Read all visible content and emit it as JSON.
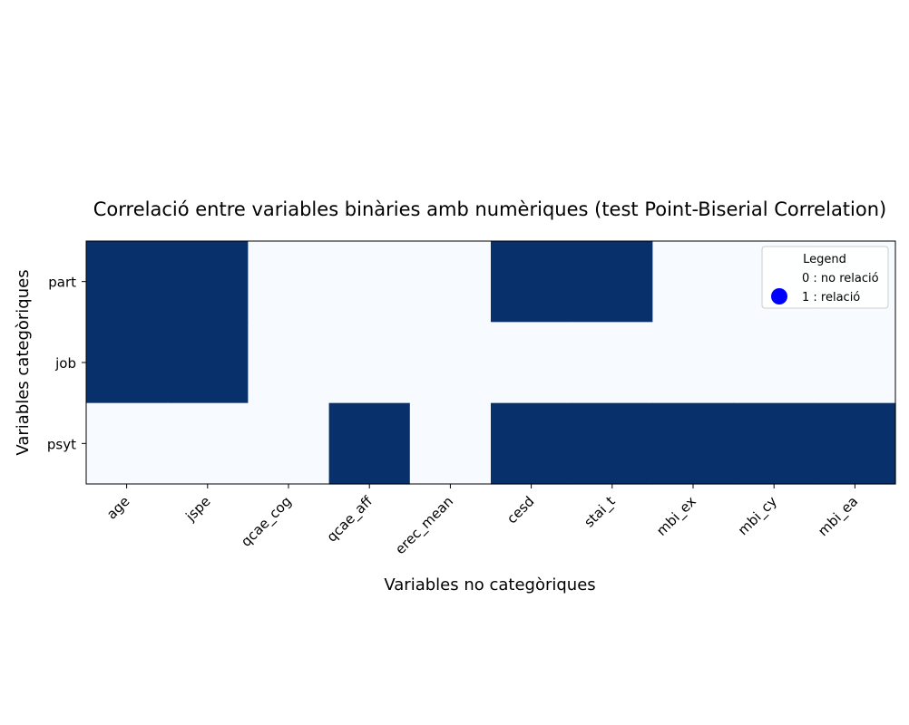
{
  "chart_data": {
    "type": "heatmap",
    "title": "Correlació entre variables binàries amb numèriques (test Point-Biserial Correlation)",
    "xlabel": "Variables no categòriques",
    "ylabel": "Variables categòriques",
    "x_categories": [
      "age",
      "jspe",
      "qcae_cog",
      "qcae_aff",
      "erec_mean",
      "cesd",
      "stai_t",
      "mbi_ex",
      "mbi_cy",
      "mbi_ea"
    ],
    "y_categories": [
      "part",
      "job",
      "psyt"
    ],
    "values": [
      [
        1,
        1,
        0,
        0,
        0,
        1,
        1,
        0,
        0,
        0
      ],
      [
        1,
        1,
        0,
        0,
        0,
        0,
        0,
        0,
        0,
        0
      ],
      [
        0,
        0,
        0,
        1,
        0,
        1,
        1,
        1,
        1,
        1
      ]
    ],
    "colors": {
      "0": "#f7fbff",
      "1": "#08306b"
    },
    "legend": {
      "title": "Legend",
      "position": "top-right",
      "entries": [
        {
          "label": "0 : no relació",
          "marker": "none"
        },
        {
          "label": "1 : relació",
          "marker": "circle",
          "color": "#0000ff"
        }
      ]
    },
    "grid": false
  }
}
